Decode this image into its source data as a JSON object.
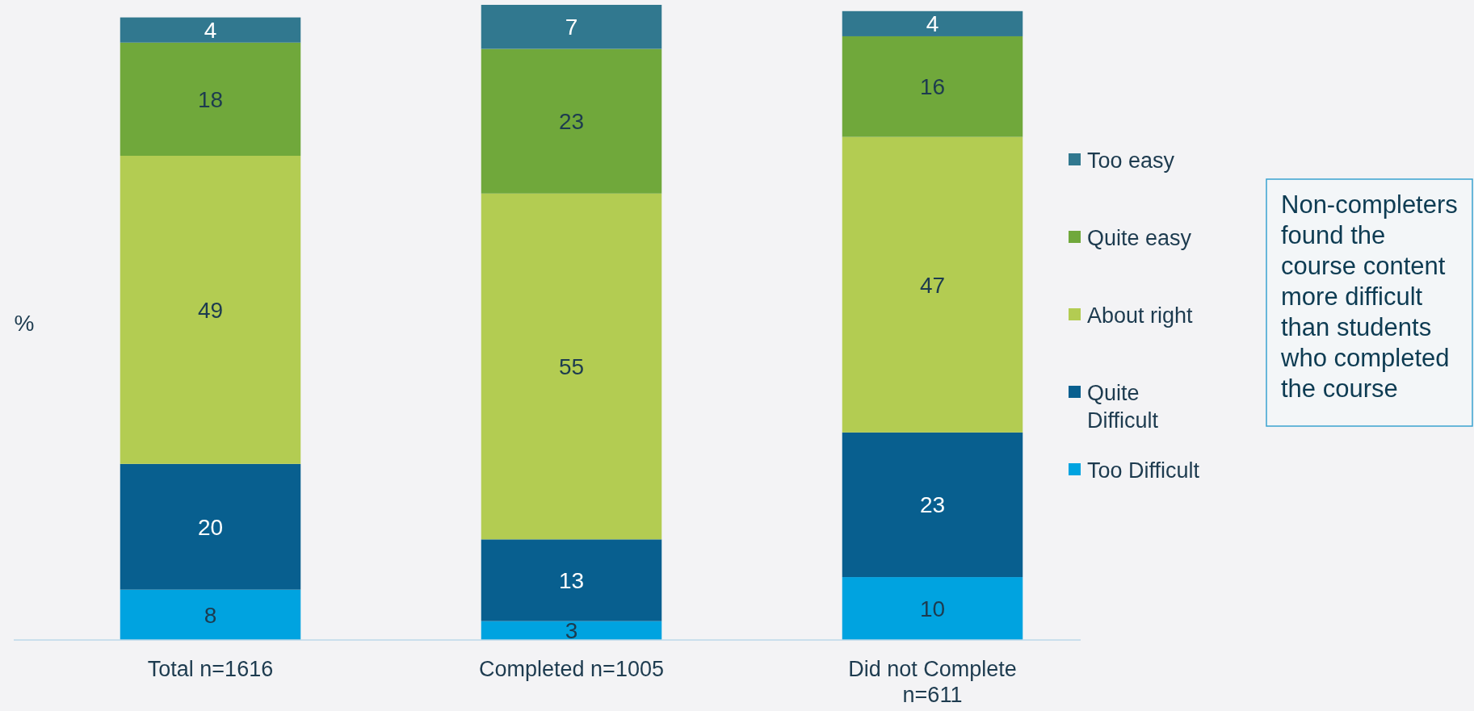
{
  "chart_data": {
    "type": "bar",
    "stacked": true,
    "ylabel": "%",
    "data_labels": true,
    "legend": "right",
    "categories": [
      "Total n=1616",
      "Completed n=1005",
      "Did not Complete n=611"
    ],
    "series": [
      {
        "name": "Too Difficult",
        "color": "#00a3e0",
        "values": [
          8,
          3,
          10
        ]
      },
      {
        "name": "Quite Difficult",
        "color": "#085f8f",
        "values": [
          20,
          13,
          23
        ]
      },
      {
        "name": "About right",
        "color": "#b3cc52",
        "values": [
          49,
          55,
          47
        ]
      },
      {
        "name": "Quite easy",
        "color": "#70a83b",
        "values": [
          18,
          23,
          16
        ]
      },
      {
        "name": "Too easy",
        "color": "#31788f",
        "values": [
          4,
          7,
          4
        ]
      }
    ],
    "annotations": [
      "Non-completers found the course content more difficult than students who completed the course"
    ]
  }
}
